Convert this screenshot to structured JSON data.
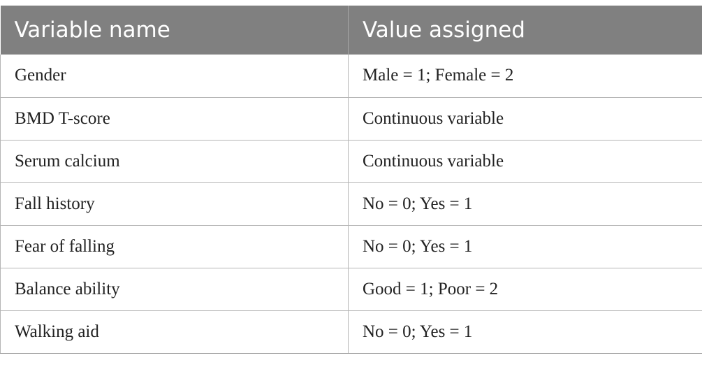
{
  "table": {
    "headers": [
      "Variable name",
      "Value assigned"
    ],
    "rows": [
      [
        "Gender",
        "Male = 1; Female = 2"
      ],
      [
        "BMD T-score",
        "Continuous variable"
      ],
      [
        "Serum calcium",
        "Continuous variable"
      ],
      [
        "Fall history",
        "No = 0; Yes = 1"
      ],
      [
        "Fear of falling",
        "No = 0; Yes = 1"
      ],
      [
        "Balance ability",
        "Good = 1; Poor = 2"
      ],
      [
        "Walking aid",
        "No = 0; Yes = 1"
      ]
    ]
  },
  "colors": {
    "header_bg": "#808080",
    "header_text": "#ffffff",
    "border": "#b5b5b5"
  }
}
